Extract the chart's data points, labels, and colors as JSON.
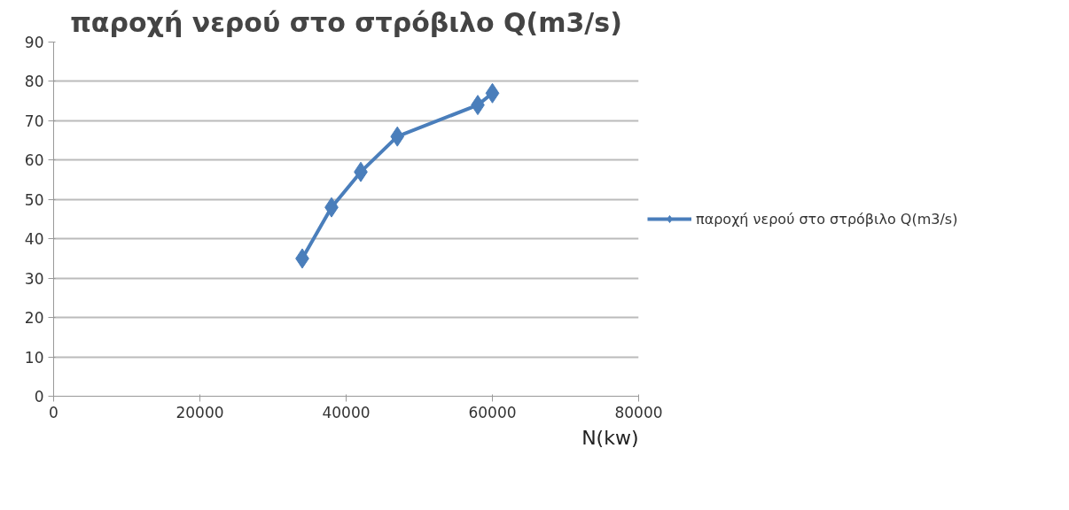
{
  "chart_data": {
    "type": "line",
    "title": "παροχή νερού στο στρόβιλο Q(m3/s)",
    "xlabel": "N(kw)",
    "x": [
      34000,
      38000,
      42000,
      47000,
      58000,
      60000
    ],
    "series": [
      {
        "name": "παροχή νερού στο στρόβιλο Q(m3/s)",
        "color": "#4a7ebb",
        "values": [
          35,
          48,
          57,
          66,
          74,
          77
        ]
      }
    ],
    "xlim": [
      0,
      80000
    ],
    "xticks": [
      0,
      20000,
      40000,
      60000,
      80000
    ],
    "ylim": [
      0,
      90
    ],
    "yticks": [
      0,
      10,
      20,
      30,
      40,
      50,
      60,
      70,
      80,
      90
    ],
    "grid": "y",
    "legend": "right",
    "marker": "diamond",
    "line_style": "solid"
  }
}
